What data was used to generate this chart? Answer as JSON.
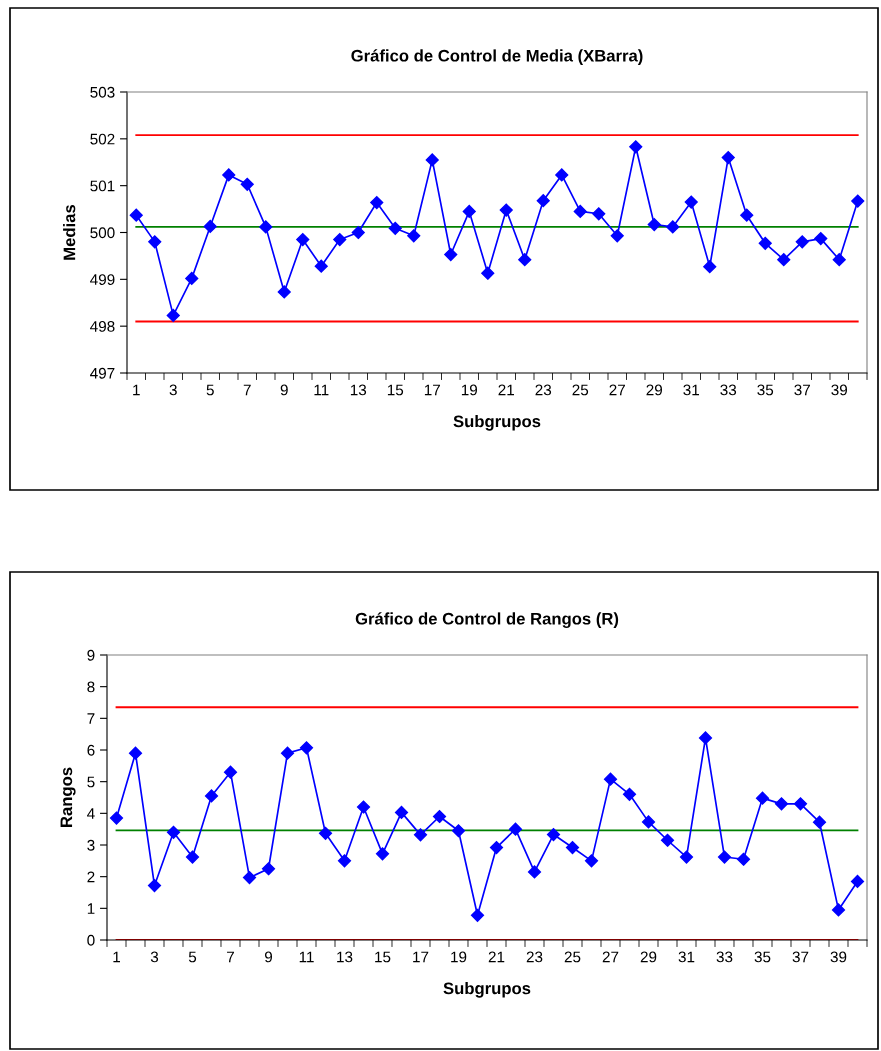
{
  "chart_data": [
    {
      "type": "line",
      "title": "Gráfico de Control de Media (XBarra)",
      "xlabel": "Subgrupos",
      "ylabel": "Medias",
      "categories": [
        "1",
        null,
        "3",
        null,
        "5",
        null,
        "7",
        null,
        "9",
        null,
        "11",
        null,
        "13",
        null,
        "15",
        null,
        "17",
        null,
        "19",
        null,
        "21",
        null,
        "23",
        null,
        "25",
        null,
        "27",
        null,
        "29",
        null,
        "31",
        null,
        "33",
        null,
        "35",
        null,
        "37",
        null,
        "39",
        null
      ],
      "series": [
        {
          "color": "#0000ff",
          "values": [
            500.37,
            499.8,
            498.23,
            499.02,
            500.13,
            501.23,
            501.03,
            500.12,
            498.73,
            499.85,
            499.28,
            499.85,
            500.0,
            500.64,
            500.09,
            499.93,
            501.55,
            499.53,
            500.45,
            499.13,
            500.48,
            499.42,
            500.68,
            501.23,
            500.45,
            500.4,
            499.93,
            501.83,
            500.17,
            500.12,
            500.65,
            499.27,
            501.6,
            500.37,
            499.77,
            499.42,
            499.8,
            499.87,
            499.42,
            500.67
          ]
        }
      ],
      "ylim": [
        497,
        503
      ],
      "yticks": [
        497,
        498,
        499,
        500,
        501,
        502,
        503
      ],
      "ref_lines": [
        {
          "axis": "y",
          "value": 502.08,
          "color": "#ff0000"
        },
        {
          "axis": "y",
          "value": 500.12,
          "color": "#008000"
        },
        {
          "axis": "y",
          "value": 498.1,
          "color": "#ff0000"
        }
      ],
      "grid": false,
      "marker": "diamond",
      "line_style": "solid"
    },
    {
      "type": "line",
      "title": "Gráfico de Control de Rangos (R)",
      "xlabel": "Subgrupos",
      "ylabel": "Rangos",
      "categories": [
        "1",
        null,
        "3",
        null,
        "5",
        null,
        "7",
        null,
        "9",
        null,
        "11",
        null,
        "13",
        null,
        "15",
        null,
        "17",
        null,
        "19",
        null,
        "21",
        null,
        "23",
        null,
        "25",
        null,
        "27",
        null,
        "29",
        null,
        "31",
        null,
        "33",
        null,
        "35",
        null,
        "37",
        null,
        "39",
        null
      ],
      "series": [
        {
          "color": "#0000ff",
          "values": [
            3.85,
            5.9,
            1.72,
            3.4,
            2.62,
            4.55,
            5.3,
            1.97,
            2.25,
            5.9,
            6.07,
            3.37,
            2.5,
            4.2,
            2.72,
            4.03,
            3.32,
            3.9,
            3.45,
            0.78,
            2.92,
            3.5,
            2.15,
            3.33,
            2.92,
            2.5,
            5.08,
            4.6,
            3.73,
            3.15,
            2.62,
            6.38,
            2.62,
            2.55,
            4.48,
            4.3,
            4.3,
            3.72,
            0.95,
            1.85
          ]
        }
      ],
      "ylim": [
        0,
        9
      ],
      "yticks": [
        0,
        1,
        2,
        3,
        4,
        5,
        6,
        7,
        8,
        9
      ],
      "ref_lines": [
        {
          "axis": "y",
          "value": 7.35,
          "color": "#ff0000"
        },
        {
          "axis": "y",
          "value": 3.46,
          "color": "#008000"
        },
        {
          "axis": "y",
          "value": 0,
          "color": "#ff0000"
        }
      ],
      "grid": false,
      "marker": "diamond",
      "line_style": "solid"
    }
  ]
}
